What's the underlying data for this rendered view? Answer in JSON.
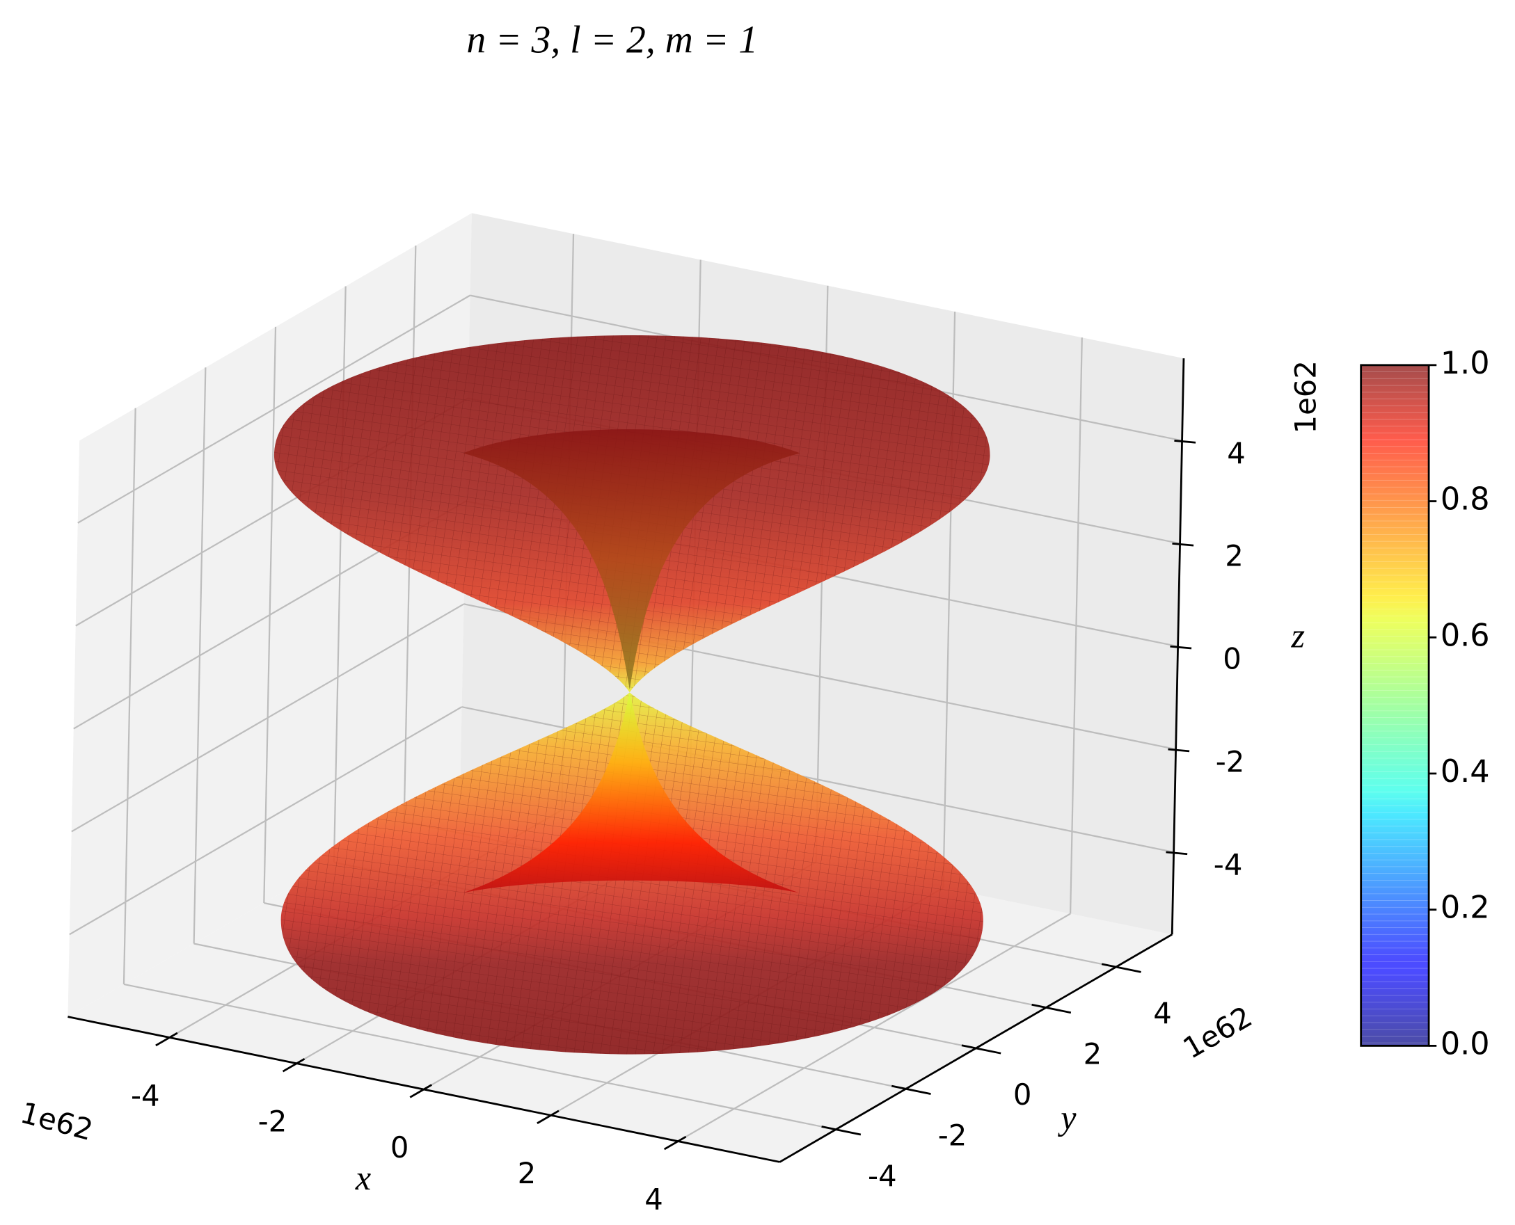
{
  "chart_data": {
    "type": "surface3d",
    "title": "n = 3, l = 2, m = 1",
    "xlabel": "x",
    "ylabel": "y",
    "zlabel": "z",
    "xlim": [
      -5.6,
      5.6
    ],
    "ylim": [
      -5.6,
      5.6
    ],
    "zlim": [
      -5.6,
      5.6
    ],
    "xticks": [
      -4,
      -2,
      0,
      2,
      4
    ],
    "yticks": [
      -4,
      -2,
      0,
      2,
      4
    ],
    "zticks": [
      -4,
      -2,
      0,
      2,
      4
    ],
    "x_offset_text": "1e62",
    "y_offset_text": "1e62",
    "z_offset_text": "1e62",
    "grid": true,
    "colormap": "jet",
    "colorbar": {
      "lim": [
        0,
        1
      ],
      "ticks": [
        {
          "value": 0,
          "label": "0.0"
        },
        0.2,
        0.4,
        0.6,
        0.8,
        {
          "value": 1,
          "label": "1.0"
        }
      ]
    }
  }
}
